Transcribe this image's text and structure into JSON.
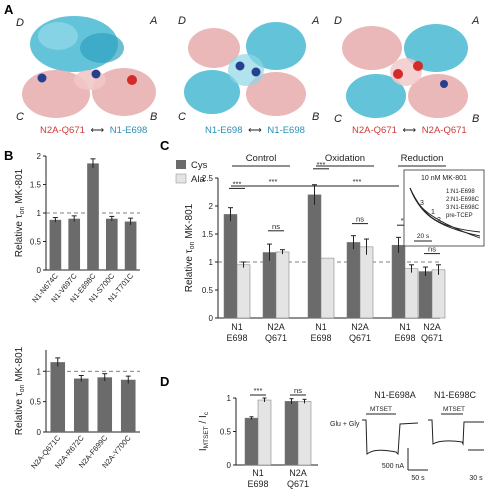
{
  "colors": {
    "cyan_subunit": "#46b8d2",
    "pink_subunit": "#e8b0b0",
    "red_site": "#d42a2a",
    "blue_site": "#26408f",
    "label_red": "#cc3a3a",
    "label_blue": "#2a8fb4",
    "bar_cys": "#6b6b6b",
    "bar_ala": "#e4e4e4"
  },
  "panel_a": {
    "letter": "A",
    "structures": [
      {
        "corners": {
          "tl": "D",
          "tr": "A",
          "bl": "C",
          "br": "B"
        },
        "caption_left": "N2A-Q671",
        "caption_arrow": "⟷",
        "caption_right": "N1-E698",
        "caption_left_color": "red",
        "caption_right_color": "blue"
      },
      {
        "corners": {
          "tl": "D",
          "tr": "A",
          "bl": "C",
          "br": "B"
        },
        "caption_left": "N1-E698",
        "caption_arrow": "⟷",
        "caption_right": "N1-E698",
        "caption_left_color": "blue",
        "caption_right_color": "blue"
      },
      {
        "corners": {
          "tl": "D",
          "tr": "A",
          "bl": "C",
          "br": "B"
        },
        "caption_left": "N2A-Q671",
        "caption_arrow": "⟷",
        "caption_right": "N2A-Q671",
        "caption_left_color": "red",
        "caption_right_color": "red"
      }
    ]
  },
  "panel_b": {
    "letter": "B",
    "top": {
      "ylabel": "Relative τ",
      "ylabel_sub": "on",
      "ylabel_tail": " MK-801",
      "yticks": [
        "0",
        "0.5",
        "1",
        "1.5",
        "2"
      ],
      "ylim": [
        0,
        2
      ],
      "reference_line": 1,
      "chart_data": {
        "type": "bar",
        "categories": [
          "N1-N674C",
          "N1-V697C",
          "N1-E698C",
          "N1-S700C",
          "N1-T701C"
        ],
        "values": [
          0.88,
          0.9,
          1.87,
          0.9,
          0.85
        ],
        "errors": [
          0.04,
          0.05,
          0.08,
          0.04,
          0.06
        ]
      }
    },
    "bottom": {
      "ylabel": "Relative τ",
      "ylabel_sub": "on",
      "ylabel_tail": " MK-801",
      "yticks": [
        "0",
        "0.5",
        "1"
      ],
      "ylim": [
        0,
        1.35
      ],
      "reference_line": 1,
      "chart_data": {
        "type": "bar",
        "categories": [
          "N2A-Q671C",
          "N2A-R672C",
          "N2A-F699C",
          "N2A-Y700C"
        ],
        "values": [
          1.15,
          0.88,
          0.9,
          0.86
        ],
        "errors": [
          0.07,
          0.05,
          0.06,
          0.06
        ]
      }
    }
  },
  "panel_c": {
    "letter": "C",
    "legend": [
      "Cys",
      "Ala"
    ],
    "groups": [
      "Control",
      "Oxidation",
      "Reduction"
    ],
    "ylabel": "Relative τ",
    "ylabel_sub": "on",
    "ylabel_tail": " MK-801",
    "yticks": [
      "0",
      "0.5",
      "1",
      "1.5",
      "2",
      "2.5"
    ],
    "ylim": [
      0,
      2.5
    ],
    "reference_line": 1,
    "cat_top": [
      "N1",
      "N2A",
      "N1",
      "N2A",
      "N1",
      "N2A"
    ],
    "cat_bottom": [
      "E698",
      "Q671",
      "E698",
      "Q671",
      "E698",
      "Q671"
    ],
    "significance": [
      "***",
      "ns",
      "***",
      "ns",
      "***",
      "ns"
    ],
    "group_significance": [
      "***",
      "***"
    ],
    "chart_data": {
      "type": "bar",
      "categories": [
        "Control N1-E698",
        "Control N2A-Q671",
        "Oxidation N1-E698",
        "Oxidation N2A-Q671",
        "Reduction N1-E698",
        "Reduction N2A-Q671"
      ],
      "series": [
        {
          "name": "Cys",
          "values": [
            1.85,
            1.17,
            2.2,
            1.35,
            1.3,
            0.83
          ],
          "errors": [
            0.12,
            0.15,
            0.18,
            0.12,
            0.14,
            0.08
          ]
        },
        {
          "name": "Ala",
          "values": [
            0.95,
            1.18,
            1.07,
            1.27,
            0.88,
            0.86
          ],
          "errors": [
            0.05,
            0.04,
            0.0,
            0.14,
            0.07,
            0.09
          ]
        }
      ]
    },
    "inset": {
      "title": "10 nM MK-801",
      "legend": [
        "1:N1-E698",
        "2:N1-E698C",
        "3:N1-E698C",
        "pre-TCEP"
      ],
      "curve_labels": [
        "3",
        "1",
        "2"
      ],
      "scalebar": "20 s"
    }
  },
  "panel_d": {
    "letter": "D",
    "ylabel_main": "I",
    "ylabel_sub1": "MTSET",
    "ylabel_mid": " / I",
    "ylabel_sub2": "c",
    "yticks": [
      "0",
      "0.5",
      "1"
    ],
    "ylim": [
      0,
      1
    ],
    "cat_top": [
      "N1",
      "N2A"
    ],
    "cat_bottom": [
      "E698",
      "Q671"
    ],
    "significance": [
      "***",
      "ns"
    ],
    "chart_data": {
      "type": "bar",
      "categories": [
        "N1-E698",
        "N2A-Q671"
      ],
      "series": [
        {
          "name": "Cys",
          "values": [
            0.7,
            0.95
          ],
          "errors": [
            0.02,
            0.04
          ]
        },
        {
          "name": "Ala",
          "values": [
            0.97,
            0.95
          ],
          "errors": [
            0.03,
            0.03
          ]
        }
      ]
    },
    "traces": [
      {
        "title": "N1-E698A",
        "agonist": "Glu + Gly",
        "drug": "MTSET",
        "scale_y": "500 nA",
        "scale_x": "50 s"
      },
      {
        "title": "N1-E698C",
        "agonist": "",
        "drug": "MTSET",
        "scale_y": "500 nA",
        "scale_x": "30 s"
      }
    ]
  }
}
